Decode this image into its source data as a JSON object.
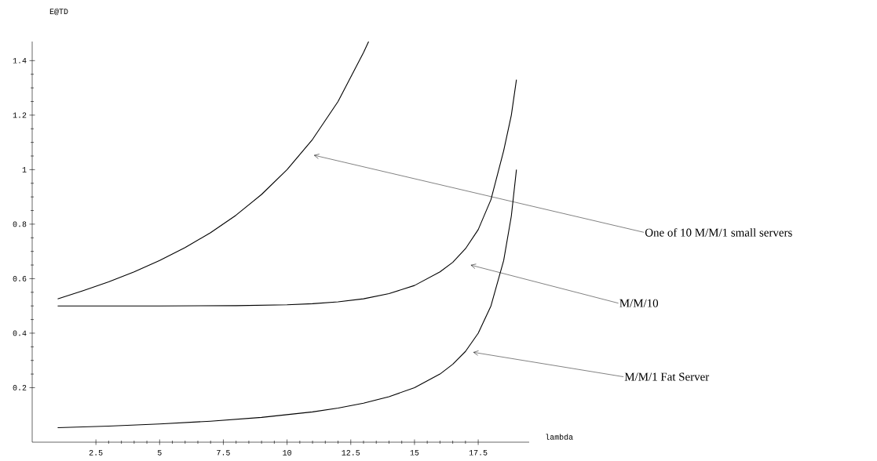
{
  "chart_data": {
    "type": "line",
    "xlabel": "lambda",
    "ylabel": "E@TD",
    "xlim": [
      0,
      19.5
    ],
    "ylim": [
      0,
      1.47
    ],
    "xticks": [
      2.5,
      5,
      7.5,
      10,
      12.5,
      15,
      17.5
    ],
    "yticks": [
      0.2,
      0.4,
      0.6,
      0.8,
      1,
      1.2,
      1.4
    ],
    "grid": false,
    "marker": "none",
    "line_style": "solid",
    "series": [
      {
        "color": "#000000",
        "x": [
          1,
          2,
          3,
          4,
          5,
          6,
          7,
          8,
          9,
          10,
          11,
          12,
          13,
          13.2
        ],
        "values": [
          0.526,
          0.556,
          0.588,
          0.625,
          0.667,
          0.714,
          0.769,
          0.833,
          0.909,
          1.0,
          1.111,
          1.25,
          1.43,
          1.47
        ]
      },
      {
        "color": "#000000",
        "x": [
          1,
          5,
          8,
          10,
          11,
          12,
          13,
          14,
          15,
          16,
          16.5,
          17,
          17.5,
          18,
          18.5,
          18.8,
          19
        ],
        "values": [
          0.5,
          0.5,
          0.501,
          0.504,
          0.508,
          0.515,
          0.526,
          0.545,
          0.575,
          0.625,
          0.66,
          0.71,
          0.78,
          0.89,
          1.07,
          1.2,
          1.33
        ]
      },
      {
        "color": "#000000",
        "x": [
          1,
          3,
          5,
          7,
          9,
          11,
          12,
          13,
          14,
          15,
          16,
          16.5,
          17,
          17.5,
          18,
          18.5,
          18.8,
          19
        ],
        "values": [
          0.053,
          0.059,
          0.067,
          0.077,
          0.091,
          0.111,
          0.125,
          0.143,
          0.167,
          0.2,
          0.25,
          0.286,
          0.333,
          0.4,
          0.5,
          0.667,
          0.83,
          1.0
        ]
      }
    ],
    "annotations": [
      "One of 10 M/M/1 small servers",
      "M/M/10",
      "M/M/1 Fat Server"
    ]
  }
}
